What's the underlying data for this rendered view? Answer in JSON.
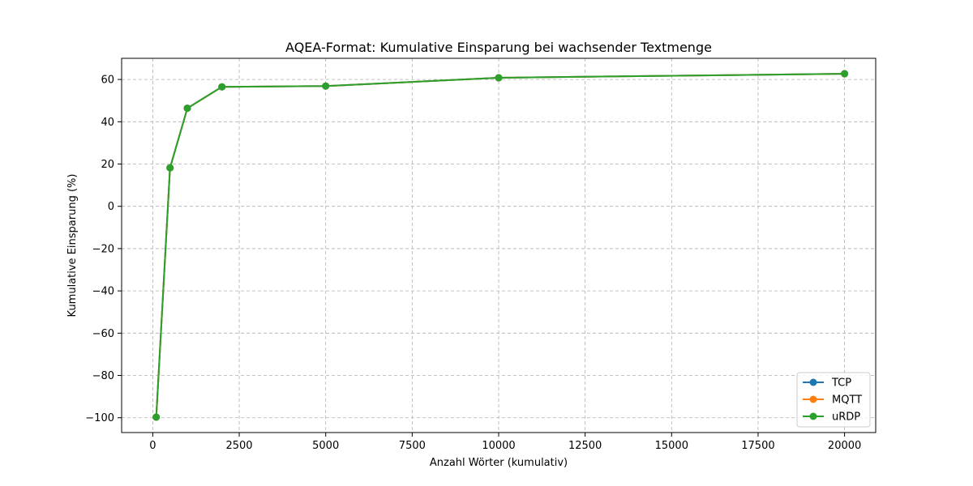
{
  "chart_data": {
    "type": "line",
    "title": "AQEA-Format: Kumulative Einsparung bei wachsender Textmenge",
    "xlabel": "Anzahl Wörter (kumulativ)",
    "ylabel": "Kumulative Einsparung (%)",
    "xlim": [
      -900,
      20900
    ],
    "ylim": [
      -107,
      70
    ],
    "xticks": [
      0,
      2500,
      5000,
      7500,
      10000,
      12500,
      15000,
      17500,
      20000
    ],
    "yticks": [
      -100,
      -80,
      -60,
      -40,
      -20,
      0,
      20,
      40,
      60
    ],
    "grid": true,
    "legend_position": "lower-right",
    "x": [
      100,
      500,
      1000,
      2000,
      5000,
      10000,
      20000
    ],
    "series": [
      {
        "name": "TCP",
        "color": "#1f77b4",
        "values": [
          -99.7,
          18.2,
          46.4,
          56.5,
          56.9,
          60.8,
          62.7
        ]
      },
      {
        "name": "MQTT",
        "color": "#ff7f0e",
        "values": [
          -99.7,
          18.2,
          46.4,
          56.5,
          56.9,
          60.8,
          62.7
        ]
      },
      {
        "name": "uRDP",
        "color": "#2ca02c",
        "values": [
          -99.7,
          18.2,
          46.4,
          56.5,
          56.9,
          60.8,
          62.7
        ]
      }
    ]
  }
}
